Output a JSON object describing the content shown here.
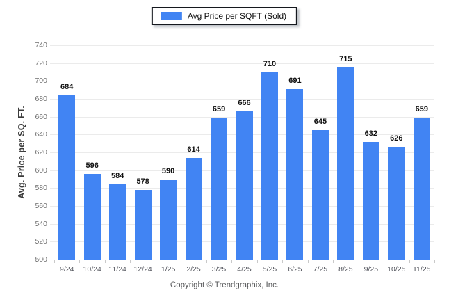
{
  "page": {
    "background_color": "#ffffff"
  },
  "legend": {
    "label": "Avg Price per SQFT (Sold)",
    "swatch_color": "#4184f3",
    "position": "top-center"
  },
  "footer": {
    "copyright": "Copyright © Trendgraphix, Inc."
  },
  "chart_data": {
    "type": "bar",
    "title": "",
    "xlabel": "",
    "ylabel": "Avg. Price per SQ. FT.",
    "series_name": "Avg Price per SQFT (Sold)",
    "categories": [
      "9/24",
      "10/24",
      "11/24",
      "12/24",
      "1/25",
      "2/25",
      "3/25",
      "4/25",
      "5/25",
      "6/25",
      "7/25",
      "8/25",
      "9/25",
      "10/25",
      "11/25"
    ],
    "values": [
      684,
      596,
      584,
      578,
      590,
      614,
      659,
      666,
      710,
      691,
      645,
      715,
      632,
      626,
      659
    ],
    "ylim": [
      500,
      740
    ],
    "ytick_step": 20,
    "yticks": [
      500,
      520,
      540,
      560,
      580,
      600,
      620,
      640,
      660,
      680,
      700,
      720,
      740
    ],
    "grid": "horizontal",
    "legend_position": "top-center",
    "bar_color": "#4184f3",
    "value_labels_shown": true
  }
}
